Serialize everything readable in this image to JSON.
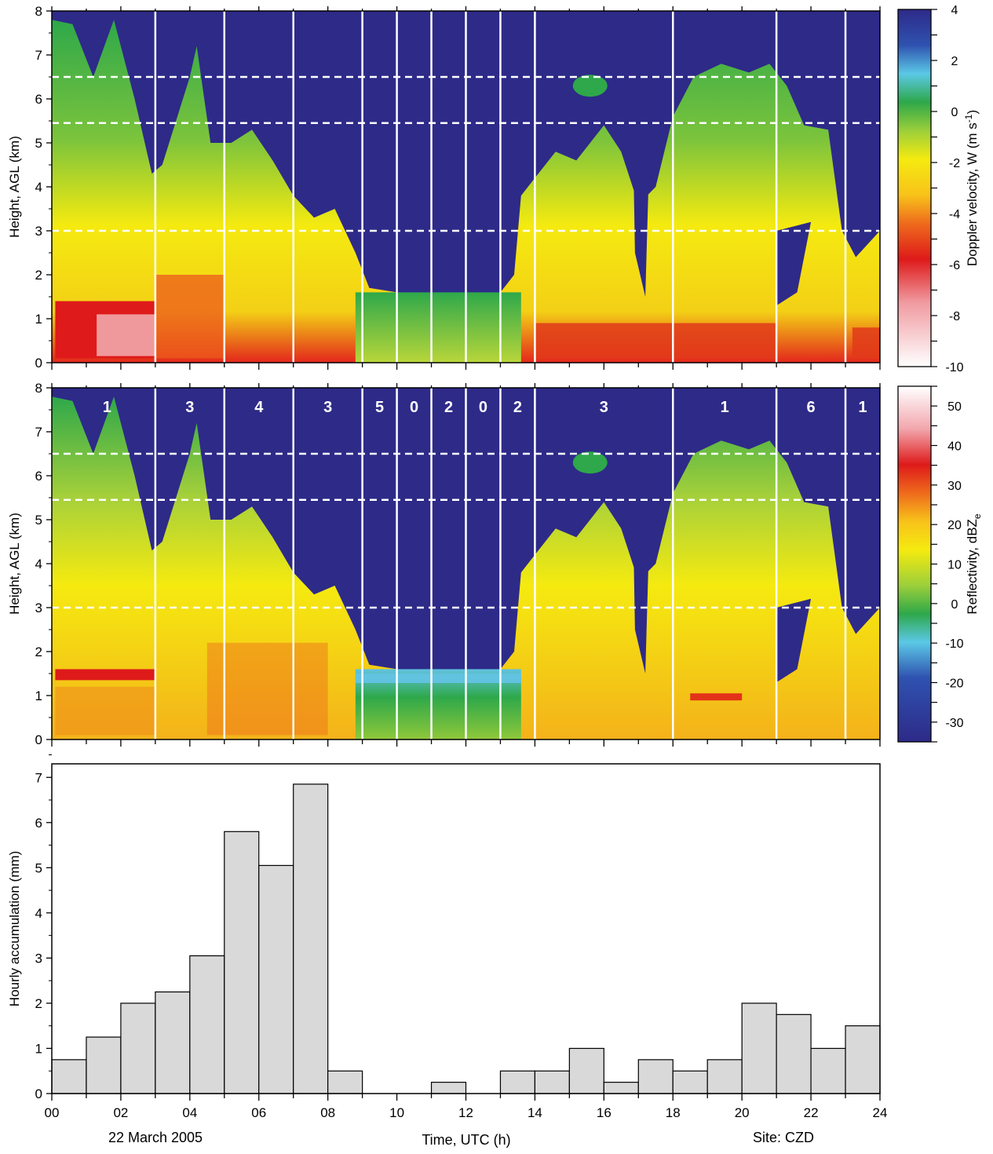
{
  "figure": {
    "date_label": "22 March 2005",
    "site_label": "Site: CZD",
    "xlabel": "Time, UTC (h)"
  },
  "colors": {
    "background_cloudfree": "#2e2a88",
    "bar_fill": "#d9d9d9",
    "divider_lines": "#ffffff",
    "dashed_lines": "#ffffff"
  },
  "chart_data": [
    {
      "type": "heatmap",
      "panel": "doppler-velocity",
      "ylabel": "Height, AGL (km)",
      "xlim": [
        0,
        24
      ],
      "ylim": [
        0,
        8
      ],
      "yticks": [
        "0",
        "1",
        "2",
        "3",
        "4",
        "5",
        "6",
        "7",
        "8"
      ],
      "colorbar": {
        "label": "Doppler velocity, W (m s",
        "label_sup": "-1",
        "label_end": ")",
        "range": [
          -10,
          4
        ],
        "ticks": [
          "4",
          "2",
          "0",
          "-2",
          "-4",
          "-6",
          "-8",
          "-10"
        ],
        "tick_values": [
          4,
          2,
          0,
          -2,
          -4,
          -6,
          -8,
          -10
        ]
      },
      "divider_times": [
        3,
        5,
        7,
        9,
        10,
        11,
        12,
        13,
        14,
        18,
        21,
        23
      ],
      "dashed_heights_km": [
        6.5,
        5.45,
        3.0
      ]
    },
    {
      "type": "heatmap",
      "panel": "reflectivity",
      "ylabel": "Height, AGL (km)",
      "xlim": [
        0,
        24
      ],
      "ylim": [
        0,
        8
      ],
      "yticks": [
        "0",
        "1",
        "2",
        "3",
        "4",
        "5",
        "6",
        "7",
        "8"
      ],
      "colorbar": {
        "label": "Reflectivity, dBZ",
        "label_sub": "e",
        "range": [
          -35,
          55
        ],
        "ticks": [
          "50",
          "40",
          "30",
          "20",
          "10",
          "0",
          "-10",
          "-20",
          "-30"
        ],
        "tick_values": [
          50,
          40,
          30,
          20,
          10,
          0,
          -10,
          -20,
          -30
        ]
      },
      "divider_times": [
        3,
        5,
        7,
        9,
        10,
        11,
        12,
        13,
        14,
        18,
        21,
        23
      ],
      "dashed_heights_km": [
        6.5,
        5.45,
        3.0
      ],
      "segment_labels": [
        {
          "t": 1.6,
          "label": "1"
        },
        {
          "t": 4.0,
          "label": "3"
        },
        {
          "t": 6.0,
          "label": "4"
        },
        {
          "t": 8.0,
          "label": "3"
        },
        {
          "t": 9.5,
          "label": "5"
        },
        {
          "t": 10.5,
          "label": "0"
        },
        {
          "t": 11.5,
          "label": "2"
        },
        {
          "t": 12.5,
          "label": "0"
        },
        {
          "t": 13.5,
          "label": "2"
        },
        {
          "t": 16.0,
          "label": "3"
        },
        {
          "t": 19.5,
          "label": "1"
        },
        {
          "t": 22.0,
          "label": "6"
        },
        {
          "t": 23.5,
          "label": "1"
        }
      ]
    },
    {
      "type": "bar",
      "panel": "hourly-accumulation",
      "ylabel": "Hourly accumulation (mm)",
      "xlabel": "Time, UTC (h)",
      "xlim": [
        0,
        24
      ],
      "ylim": [
        0,
        7.3
      ],
      "xticks": [
        "00",
        "02",
        "04",
        "06",
        "08",
        "10",
        "12",
        "14",
        "16",
        "18",
        "20",
        "22",
        "24"
      ],
      "yticks": [
        "0",
        "1",
        "2",
        "3",
        "4",
        "5",
        "6",
        "7"
      ],
      "bin_start_hours": [
        0,
        1,
        2,
        3,
        4,
        5,
        6,
        7,
        8,
        9,
        10,
        11,
        12,
        13,
        14,
        15,
        16,
        17,
        18,
        19,
        20,
        21,
        22,
        23
      ],
      "values": [
        0.75,
        1.25,
        2.0,
        2.25,
        3.05,
        5.8,
        5.05,
        6.85,
        0.5,
        0.0,
        0.0,
        0.25,
        0.0,
        0.5,
        0.5,
        1.0,
        0.25,
        0.75,
        0.5,
        0.75,
        2.0,
        1.75,
        1.0,
        1.5
      ]
    }
  ]
}
